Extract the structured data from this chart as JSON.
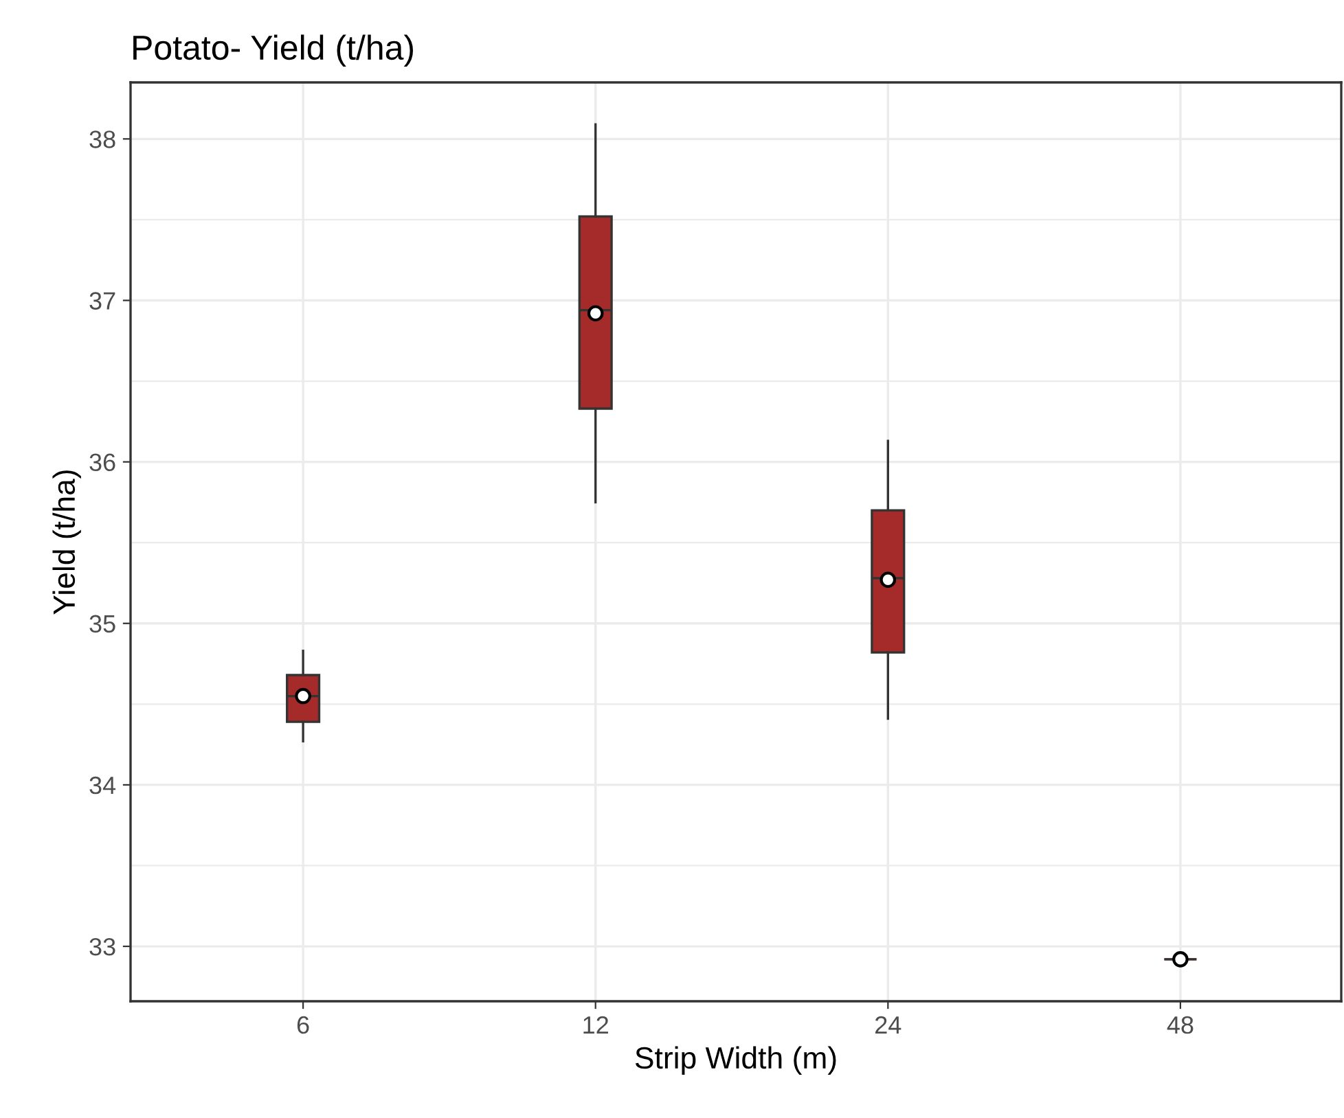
{
  "chart_data": {
    "type": "box",
    "title": "Potato- Yield (t/ha)",
    "xlabel": "Strip Width (m)",
    "ylabel": "Yield (t/ha)",
    "categories": [
      "6",
      "12",
      "24",
      "48"
    ],
    "series": [
      {
        "color": "#a52a2a",
        "boxes": [
          {
            "low": 34.27,
            "q1": 34.39,
            "median": 34.55,
            "q3": 34.68,
            "high": 34.83,
            "mean": 34.55
          },
          {
            "low": 35.75,
            "q1": 36.33,
            "median": 36.94,
            "q3": 37.52,
            "high": 38.09,
            "mean": 36.92
          },
          {
            "low": 34.41,
            "q1": 34.82,
            "median": 35.28,
            "q3": 35.7,
            "high": 36.13,
            "mean": 35.27
          },
          {
            "low": 32.92,
            "q1": 32.92,
            "median": 32.92,
            "q3": 32.92,
            "high": 32.92,
            "mean": 32.92
          }
        ]
      }
    ],
    "ylim": [
      32.66,
      38.35
    ],
    "yticks": [
      33,
      34,
      35,
      36,
      37,
      38
    ],
    "grid": true,
    "marker": "circle"
  }
}
